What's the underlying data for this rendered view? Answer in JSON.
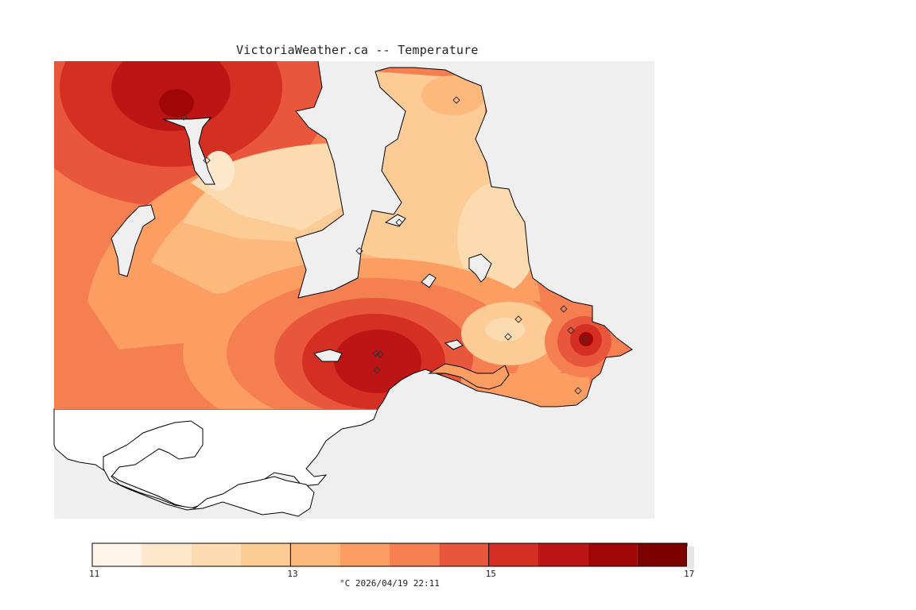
{
  "header": {
    "title": "VictoriaWeather.ca -- Temperature"
  },
  "colors": {
    "water": "#efefef",
    "land_outside": "#ffffff",
    "coast": "#000000",
    "station_marker": "#333333"
  },
  "legend": {
    "min": 11,
    "max": 17,
    "labeled_ticks": [
      "11",
      "13",
      "15",
      "17"
    ],
    "bins": [
      {
        "from": 11.0,
        "to": 11.5,
        "color": "#fff4e8"
      },
      {
        "from": 11.5,
        "to": 12.0,
        "color": "#fee8cc"
      },
      {
        "from": 12.0,
        "to": 12.5,
        "color": "#fddbb0"
      },
      {
        "from": 12.5,
        "to": 13.0,
        "color": "#fdcc96"
      },
      {
        "from": 13.0,
        "to": 13.5,
        "color": "#fdb87c"
      },
      {
        "from": 13.5,
        "to": 14.0,
        "color": "#fc9d62"
      },
      {
        "from": 14.0,
        "to": 14.5,
        "color": "#f67f52"
      },
      {
        "from": 14.5,
        "to": 15.0,
        "color": "#e8573c"
      },
      {
        "from": 15.0,
        "to": 15.5,
        "color": "#d42f22"
      },
      {
        "from": 15.5,
        "to": 16.0,
        "color": "#bd1515"
      },
      {
        "from": 16.0,
        "to": 16.5,
        "color": "#a10606"
      },
      {
        "from": 16.5,
        "to": 17.0,
        "color": "#7c0202"
      }
    ],
    "units_label": "°C  2026/04/19 22:11"
  },
  "stations_count_shown": 14
}
